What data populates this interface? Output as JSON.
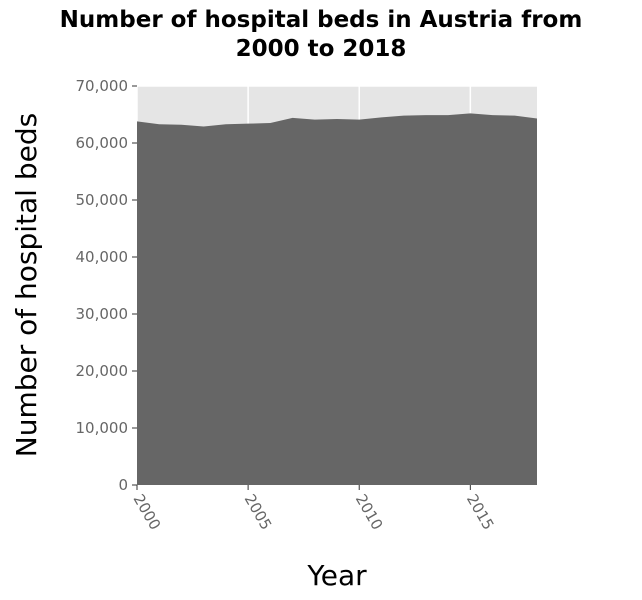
{
  "chart_data": {
    "type": "area",
    "title_line1": "Number of hospital beds in Austria from",
    "title_line2": "2000 to 2018",
    "xlabel": "Year",
    "ylabel": "Number of hospital beds",
    "xlim": [
      2000,
      2018
    ],
    "ylim": [
      0,
      70000
    ],
    "x_ticks": [
      2000,
      2005,
      2010,
      2015
    ],
    "y_ticks": [
      0,
      10000,
      20000,
      30000,
      40000,
      50000,
      60000,
      70000
    ],
    "y_tick_labels": [
      "0",
      "10,000",
      "20,000",
      "30,000",
      "40,000",
      "50,000",
      "60,000",
      "70,000"
    ],
    "x": [
      2000,
      2001,
      2002,
      2003,
      2004,
      2005,
      2006,
      2007,
      2008,
      2009,
      2010,
      2011,
      2012,
      2013,
      2014,
      2015,
      2016,
      2017,
      2018
    ],
    "values": [
      63800,
      63300,
      63200,
      62900,
      63300,
      63400,
      63500,
      64400,
      64100,
      64200,
      64100,
      64500,
      64800,
      64900,
      64900,
      65200,
      64900,
      64800,
      64300
    ],
    "grid": true,
    "legend": "none",
    "colors": {
      "area": "#666666",
      "panel": "#e5e5e5",
      "grid": "#ffffff"
    }
  }
}
